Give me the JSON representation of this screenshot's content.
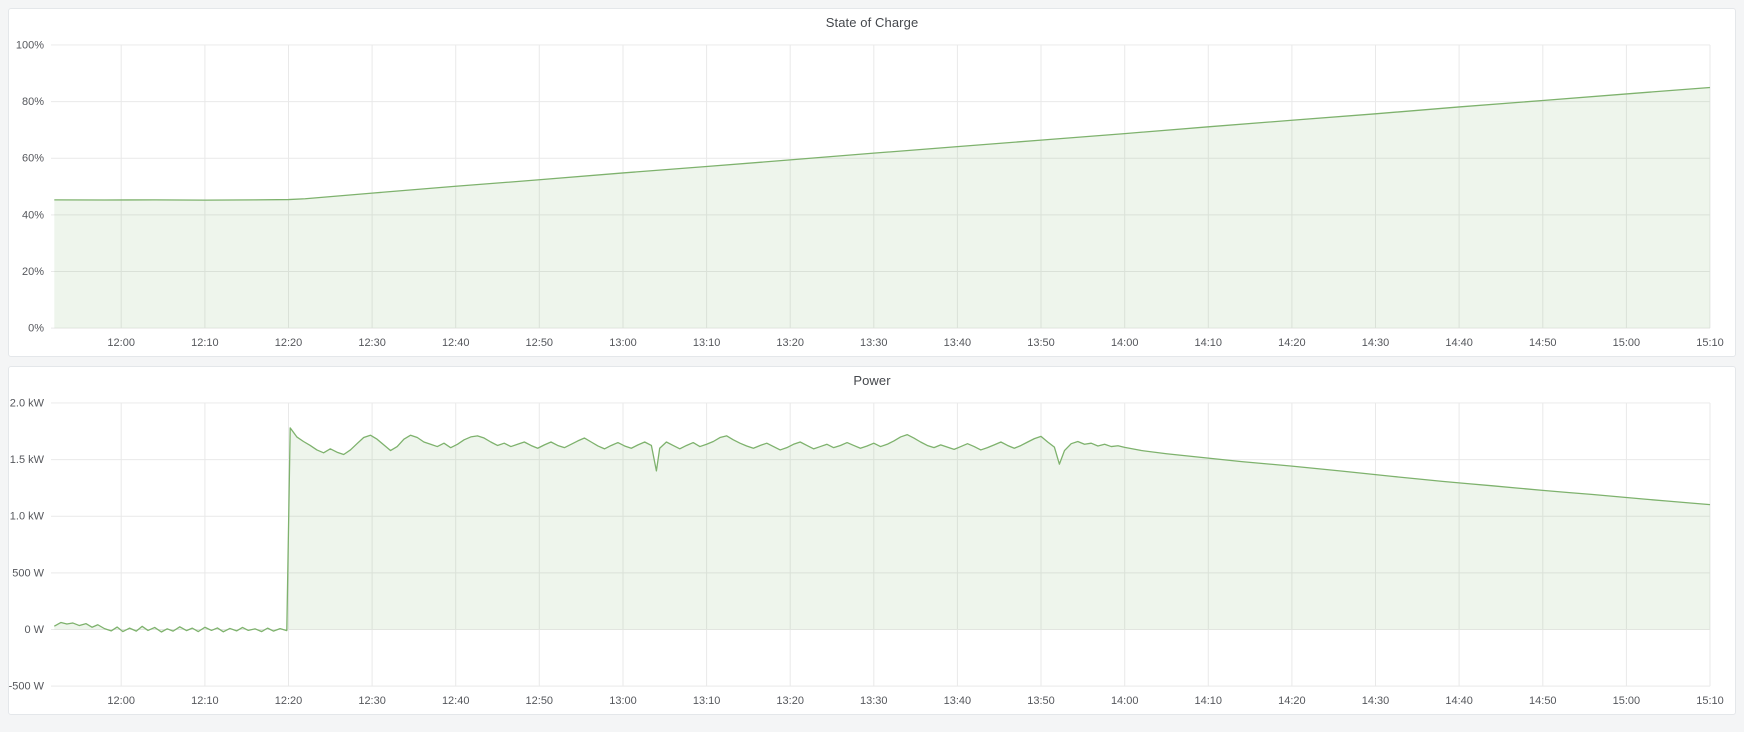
{
  "theme": {
    "page_background": "#f4f5f6",
    "panel_background": "#ffffff",
    "panel_border": "#e4e7ea",
    "grid_color": "#e9e9e9",
    "axis_text_color": "#55575c",
    "title_color": "#45484d",
    "accent_green": "#7eb26d"
  },
  "chart_data": [
    {
      "type": "area",
      "title": "State of Charge",
      "xlabel": "",
      "ylabel": "",
      "legend": "none",
      "grid": true,
      "x_domain_minutes": [
        711.6,
        910
      ],
      "y_domain": [
        0,
        100
      ],
      "fill_baseline": 0,
      "colors": {
        "line": "#7eb26d",
        "fill": "rgba(126,178,109,0.13)"
      },
      "x_ticks": [
        {
          "t": 720,
          "label": "12:00"
        },
        {
          "t": 730,
          "label": "12:10"
        },
        {
          "t": 740,
          "label": "12:20"
        },
        {
          "t": 750,
          "label": "12:30"
        },
        {
          "t": 760,
          "label": "12:40"
        },
        {
          "t": 770,
          "label": "12:50"
        },
        {
          "t": 780,
          "label": "13:00"
        },
        {
          "t": 790,
          "label": "13:10"
        },
        {
          "t": 800,
          "label": "13:20"
        },
        {
          "t": 810,
          "label": "13:30"
        },
        {
          "t": 820,
          "label": "13:40"
        },
        {
          "t": 830,
          "label": "13:50"
        },
        {
          "t": 840,
          "label": "14:00"
        },
        {
          "t": 850,
          "label": "14:10"
        },
        {
          "t": 860,
          "label": "14:20"
        },
        {
          "t": 870,
          "label": "14:30"
        },
        {
          "t": 880,
          "label": "14:40"
        },
        {
          "t": 890,
          "label": "14:50"
        },
        {
          "t": 900,
          "label": "15:00"
        },
        {
          "t": 910,
          "label": "15:10"
        }
      ],
      "y_ticks": [
        {
          "v": 0,
          "label": "0%"
        },
        {
          "v": 20,
          "label": "20%"
        },
        {
          "v": 40,
          "label": "40%"
        },
        {
          "v": 60,
          "label": "60%"
        },
        {
          "v": 80,
          "label": "80%"
        },
        {
          "v": 100,
          "label": "100%"
        }
      ],
      "series": [
        {
          "name": "State of Charge",
          "unit": "percent",
          "points": [
            [
              712,
              45.3
            ],
            [
              718,
              45.25
            ],
            [
              724,
              45.3
            ],
            [
              730,
              45.2
            ],
            [
              736,
              45.3
            ],
            [
              740,
              45.4
            ],
            [
              742,
              45.7
            ],
            [
              750,
              47.7
            ],
            [
              760,
              50.1
            ],
            [
              770,
              52.4
            ],
            [
              780,
              54.8
            ],
            [
              790,
              57.1
            ],
            [
              800,
              59.4
            ],
            [
              810,
              61.8
            ],
            [
              820,
              64.1
            ],
            [
              830,
              66.4
            ],
            [
              840,
              68.7
            ],
            [
              850,
              71.1
            ],
            [
              860,
              73.4
            ],
            [
              870,
              75.7
            ],
            [
              880,
              78.1
            ],
            [
              890,
              80.4
            ],
            [
              900,
              82.7
            ],
            [
              910,
              85.0
            ]
          ]
        }
      ]
    },
    {
      "type": "area",
      "title": "Power",
      "xlabel": "",
      "ylabel": "",
      "legend": "none",
      "grid": true,
      "x_domain_minutes": [
        711.6,
        910
      ],
      "y_domain": [
        -500,
        2000
      ],
      "fill_baseline": 0,
      "colors": {
        "line": "#7eb26d",
        "fill": "rgba(126,178,109,0.13)"
      },
      "x_ticks": [
        {
          "t": 720,
          "label": "12:00"
        },
        {
          "t": 730,
          "label": "12:10"
        },
        {
          "t": 740,
          "label": "12:20"
        },
        {
          "t": 750,
          "label": "12:30"
        },
        {
          "t": 760,
          "label": "12:40"
        },
        {
          "t": 770,
          "label": "12:50"
        },
        {
          "t": 780,
          "label": "13:00"
        },
        {
          "t": 790,
          "label": "13:10"
        },
        {
          "t": 800,
          "label": "13:20"
        },
        {
          "t": 810,
          "label": "13:30"
        },
        {
          "t": 820,
          "label": "13:40"
        },
        {
          "t": 830,
          "label": "13:50"
        },
        {
          "t": 840,
          "label": "14:00"
        },
        {
          "t": 850,
          "label": "14:10"
        },
        {
          "t": 860,
          "label": "14:20"
        },
        {
          "t": 870,
          "label": "14:30"
        },
        {
          "t": 880,
          "label": "14:40"
        },
        {
          "t": 890,
          "label": "14:50"
        },
        {
          "t": 900,
          "label": "15:00"
        },
        {
          "t": 910,
          "label": "15:10"
        }
      ],
      "y_ticks": [
        {
          "v": -500,
          "label": "-500 W"
        },
        {
          "v": 0,
          "label": "0 W"
        },
        {
          "v": 500,
          "label": "500 W"
        },
        {
          "v": 1000,
          "label": "1.0 kW"
        },
        {
          "v": 1500,
          "label": "1.5 kW"
        },
        {
          "v": 2000,
          "label": "2.0 kW"
        }
      ],
      "series": [
        {
          "name": "Power",
          "unit": "watt",
          "points": [
            [
              712,
              30
            ],
            [
              712.8,
              62
            ],
            [
              713.5,
              48
            ],
            [
              714.2,
              58
            ],
            [
              715,
              35
            ],
            [
              715.8,
              52
            ],
            [
              716.5,
              20
            ],
            [
              717.2,
              42
            ],
            [
              718,
              8
            ],
            [
              718.8,
              -12
            ],
            [
              719.5,
              22
            ],
            [
              720.2,
              -18
            ],
            [
              721,
              12
            ],
            [
              721.8,
              -14
            ],
            [
              722.5,
              28
            ],
            [
              723.2,
              -8
            ],
            [
              724,
              18
            ],
            [
              724.8,
              -22
            ],
            [
              725.5,
              6
            ],
            [
              726.2,
              -14
            ],
            [
              727,
              24
            ],
            [
              727.8,
              -10
            ],
            [
              728.5,
              12
            ],
            [
              729.2,
              -18
            ],
            [
              730,
              20
            ],
            [
              730.8,
              -8
            ],
            [
              731.5,
              14
            ],
            [
              732.2,
              -20
            ],
            [
              733,
              10
            ],
            [
              733.8,
              -12
            ],
            [
              734.5,
              18
            ],
            [
              735.2,
              -8
            ],
            [
              736,
              6
            ],
            [
              736.8,
              -18
            ],
            [
              737.5,
              12
            ],
            [
              738.2,
              -14
            ],
            [
              739,
              8
            ],
            [
              739.8,
              -10
            ],
            [
              740.2,
              1780
            ],
            [
              741,
              1700
            ],
            [
              741.8,
              1660
            ],
            [
              742.6,
              1625
            ],
            [
              743.4,
              1585
            ],
            [
              744.2,
              1560
            ],
            [
              745,
              1595
            ],
            [
              745.8,
              1565
            ],
            [
              746.6,
              1545
            ],
            [
              747.4,
              1585
            ],
            [
              748.2,
              1640
            ],
            [
              749,
              1695
            ],
            [
              749.8,
              1715
            ],
            [
              750.6,
              1680
            ],
            [
              751.4,
              1630
            ],
            [
              752.2,
              1580
            ],
            [
              753,
              1615
            ],
            [
              753.8,
              1680
            ],
            [
              754.6,
              1715
            ],
            [
              755.4,
              1695
            ],
            [
              756.2,
              1655
            ],
            [
              757,
              1635
            ],
            [
              757.8,
              1615
            ],
            [
              758.6,
              1645
            ],
            [
              759.4,
              1605
            ],
            [
              760.2,
              1635
            ],
            [
              761,
              1675
            ],
            [
              761.8,
              1700
            ],
            [
              762.6,
              1710
            ],
            [
              763.4,
              1690
            ],
            [
              764.2,
              1655
            ],
            [
              765,
              1625
            ],
            [
              765.8,
              1645
            ],
            [
              766.6,
              1615
            ],
            [
              767.4,
              1635
            ],
            [
              768.2,
              1655
            ],
            [
              769,
              1625
            ],
            [
              769.8,
              1600
            ],
            [
              770.6,
              1630
            ],
            [
              771.4,
              1655
            ],
            [
              772.2,
              1625
            ],
            [
              773,
              1605
            ],
            [
              773.8,
              1635
            ],
            [
              774.6,
              1665
            ],
            [
              775.4,
              1690
            ],
            [
              776.2,
              1655
            ],
            [
              777,
              1620
            ],
            [
              777.8,
              1595
            ],
            [
              778.6,
              1625
            ],
            [
              779.4,
              1650
            ],
            [
              780.2,
              1620
            ],
            [
              781,
              1600
            ],
            [
              781.8,
              1630
            ],
            [
              782.6,
              1655
            ],
            [
              783.4,
              1625
            ],
            [
              784,
              1400
            ],
            [
              784.4,
              1600
            ],
            [
              785.2,
              1655
            ],
            [
              786,
              1625
            ],
            [
              786.8,
              1595
            ],
            [
              787.6,
              1625
            ],
            [
              788.4,
              1650
            ],
            [
              789.2,
              1615
            ],
            [
              790,
              1635
            ],
            [
              790.8,
              1660
            ],
            [
              791.6,
              1695
            ],
            [
              792.4,
              1710
            ],
            [
              793.2,
              1675
            ],
            [
              794,
              1645
            ],
            [
              794.8,
              1620
            ],
            [
              795.6,
              1600
            ],
            [
              796.4,
              1625
            ],
            [
              797.2,
              1645
            ],
            [
              798,
              1615
            ],
            [
              798.8,
              1585
            ],
            [
              799.6,
              1605
            ],
            [
              800.4,
              1635
            ],
            [
              801.2,
              1655
            ],
            [
              802,
              1625
            ],
            [
              802.8,
              1595
            ],
            [
              803.6,
              1615
            ],
            [
              804.4,
              1635
            ],
            [
              805.2,
              1605
            ],
            [
              806,
              1625
            ],
            [
              806.8,
              1650
            ],
            [
              807.6,
              1625
            ],
            [
              808.4,
              1600
            ],
            [
              809.2,
              1620
            ],
            [
              810,
              1645
            ],
            [
              810.8,
              1615
            ],
            [
              811.6,
              1635
            ],
            [
              812.4,
              1665
            ],
            [
              813.2,
              1700
            ],
            [
              814,
              1720
            ],
            [
              814.8,
              1690
            ],
            [
              815.6,
              1655
            ],
            [
              816.4,
              1625
            ],
            [
              817.2,
              1605
            ],
            [
              818,
              1630
            ],
            [
              818.8,
              1610
            ],
            [
              819.6,
              1590
            ],
            [
              820.4,
              1615
            ],
            [
              821.2,
              1640
            ],
            [
              822,
              1615
            ],
            [
              822.8,
              1585
            ],
            [
              823.6,
              1605
            ],
            [
              824.4,
              1630
            ],
            [
              825.2,
              1655
            ],
            [
              826,
              1625
            ],
            [
              826.8,
              1600
            ],
            [
              827.6,
              1625
            ],
            [
              828.4,
              1655
            ],
            [
              829.2,
              1685
            ],
            [
              830,
              1705
            ],
            [
              830.8,
              1655
            ],
            [
              831.6,
              1610
            ],
            [
              832.2,
              1460
            ],
            [
              832.8,
              1580
            ],
            [
              833.6,
              1640
            ],
            [
              834.4,
              1660
            ],
            [
              835.2,
              1635
            ],
            [
              836,
              1645
            ],
            [
              836.8,
              1620
            ],
            [
              837.6,
              1635
            ],
            [
              838.4,
              1615
            ],
            [
              839.2,
              1622
            ],
            [
              840,
              1608
            ],
            [
              842,
              1580
            ],
            [
              845,
              1552
            ],
            [
              848,
              1528
            ],
            [
              851,
              1505
            ],
            [
              854,
              1482
            ],
            [
              857,
              1462
            ],
            [
              860,
              1442
            ],
            [
              863,
              1420
            ],
            [
              866,
              1398
            ],
            [
              869,
              1375
            ],
            [
              872,
              1352
            ],
            [
              875,
              1330
            ],
            [
              878,
              1308
            ],
            [
              881,
              1288
            ],
            [
              884,
              1268
            ],
            [
              887,
              1248
            ],
            [
              890,
              1228
            ],
            [
              893,
              1210
            ],
            [
              896,
              1192
            ],
            [
              899,
              1172
            ],
            [
              902,
              1152
            ],
            [
              905,
              1133
            ],
            [
              908,
              1115
            ],
            [
              910,
              1103
            ]
          ]
        }
      ]
    }
  ]
}
